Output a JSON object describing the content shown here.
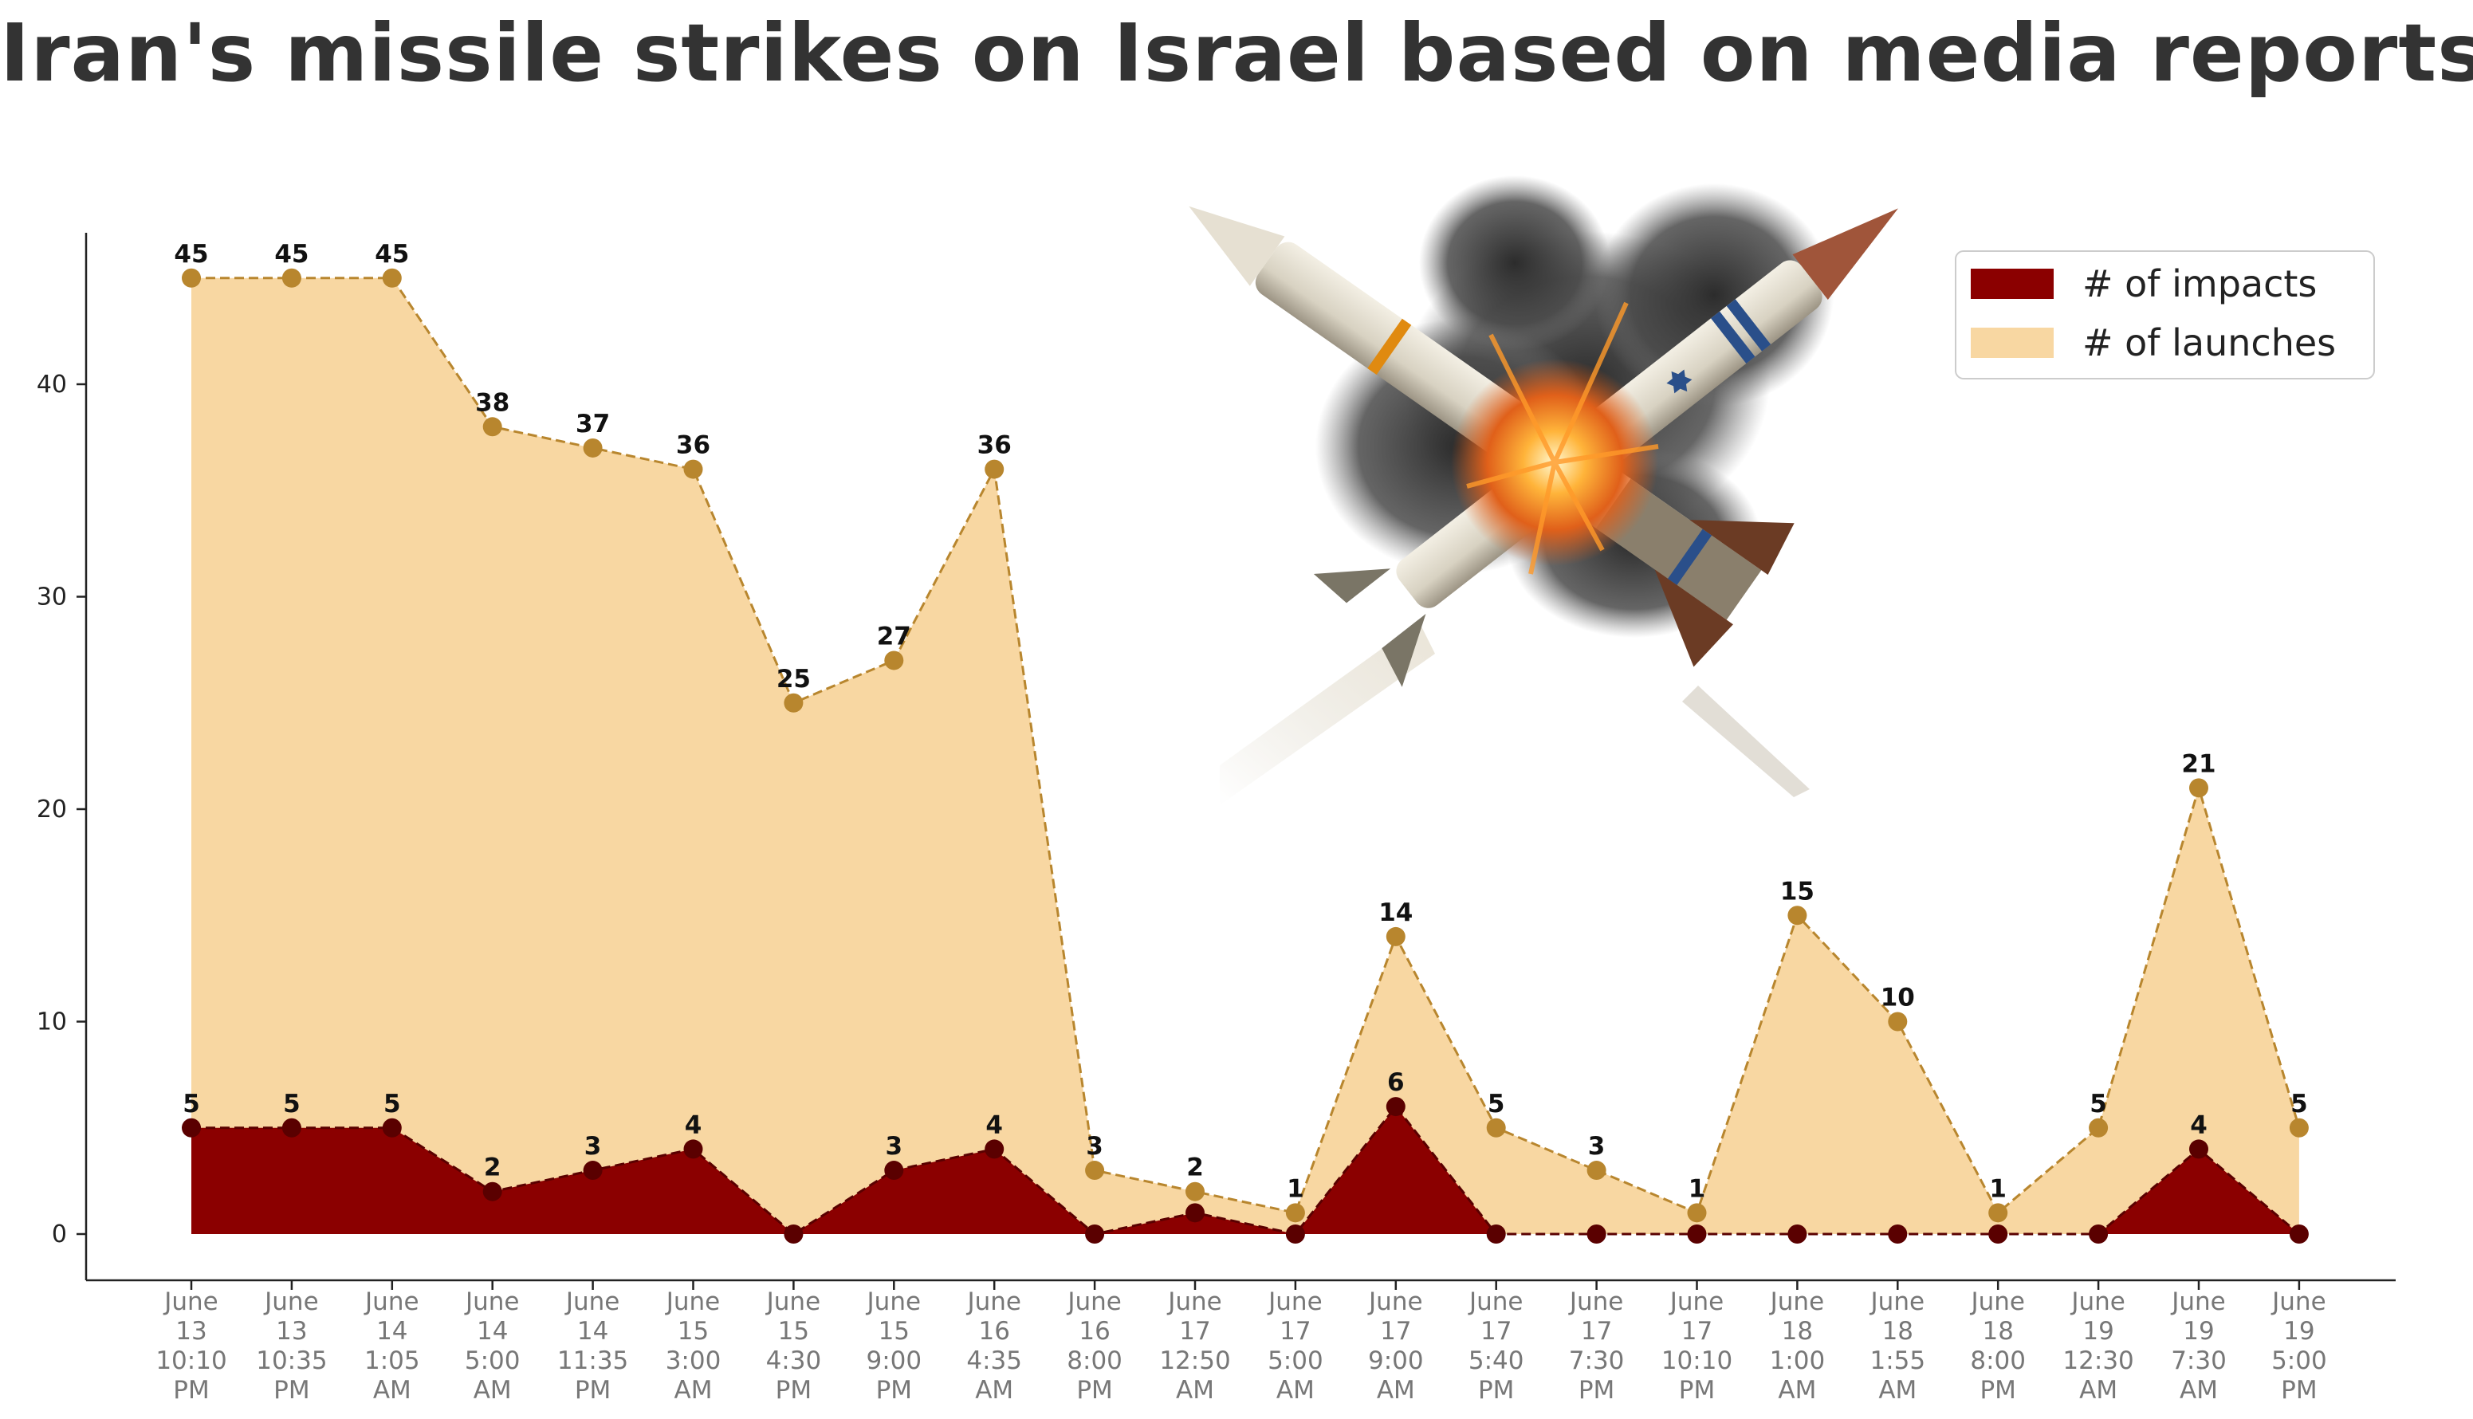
{
  "chart_data": {
    "type": "area",
    "title": "Iran's missile strikes on Israel based on media reports",
    "xlabel": "",
    "ylabel": "",
    "ylim": [
      -2.3,
      47.5
    ],
    "yticks": [
      0,
      10,
      20,
      30,
      40
    ],
    "grid": false,
    "legend_position": "top-right",
    "categories": [
      [
        "June",
        "13",
        "10:10",
        "PM"
      ],
      [
        "June",
        "13",
        "10:35",
        "PM"
      ],
      [
        "June",
        "14",
        "1:05",
        "AM"
      ],
      [
        "June",
        "14",
        "5:00",
        "AM"
      ],
      [
        "June",
        "14",
        "11:35",
        "PM"
      ],
      [
        "June",
        "15",
        "3:00",
        "AM"
      ],
      [
        "June",
        "15",
        "4:30",
        "PM"
      ],
      [
        "June",
        "15",
        "9:00",
        "PM"
      ],
      [
        "June",
        "16",
        "4:35",
        "AM"
      ],
      [
        "June",
        "16",
        "8:00",
        "PM"
      ],
      [
        "June",
        "17",
        "12:50",
        "AM"
      ],
      [
        "June",
        "17",
        "5:00",
        "AM"
      ],
      [
        "June",
        "17",
        "9:00",
        "AM"
      ],
      [
        "June",
        "17",
        "5:40",
        "PM"
      ],
      [
        "June",
        "17",
        "7:30",
        "PM"
      ],
      [
        "June",
        "17",
        "10:10",
        "PM"
      ],
      [
        "June",
        "18",
        "1:00",
        "AM"
      ],
      [
        "June",
        "18",
        "1:55",
        "AM"
      ],
      [
        "June",
        "18",
        "8:00",
        "PM"
      ],
      [
        "June",
        "19",
        "12:30",
        "AM"
      ],
      [
        "June",
        "19",
        "7:30",
        "AM"
      ],
      [
        "June",
        "19",
        "5:00",
        "PM"
      ]
    ],
    "series": [
      {
        "name": "# of launches",
        "color": "#f8d7a2",
        "line_color": "#b8862e",
        "values": [
          45,
          45,
          45,
          38,
          37,
          36,
          25,
          27,
          36,
          3,
          2,
          1,
          14,
          5,
          3,
          1,
          15,
          10,
          1,
          5,
          21,
          5
        ]
      },
      {
        "name": "# of impacts",
        "color": "#8b0000",
        "line_color": "#5a0000",
        "values": [
          5,
          5,
          5,
          2,
          3,
          4,
          0,
          3,
          4,
          0,
          1,
          0,
          6,
          0,
          0,
          0,
          0,
          0,
          0,
          0,
          4,
          0
        ]
      }
    ],
    "impact_labels_shown": [
      true,
      true,
      true,
      true,
      true,
      true,
      false,
      true,
      true,
      false,
      false,
      false,
      true,
      false,
      false,
      false,
      false,
      false,
      false,
      false,
      true,
      false
    ],
    "legend": [
      "# of impacts",
      "# of launches"
    ]
  },
  "illustration": {
    "icon": "crossed-missiles-explosion-icon"
  }
}
